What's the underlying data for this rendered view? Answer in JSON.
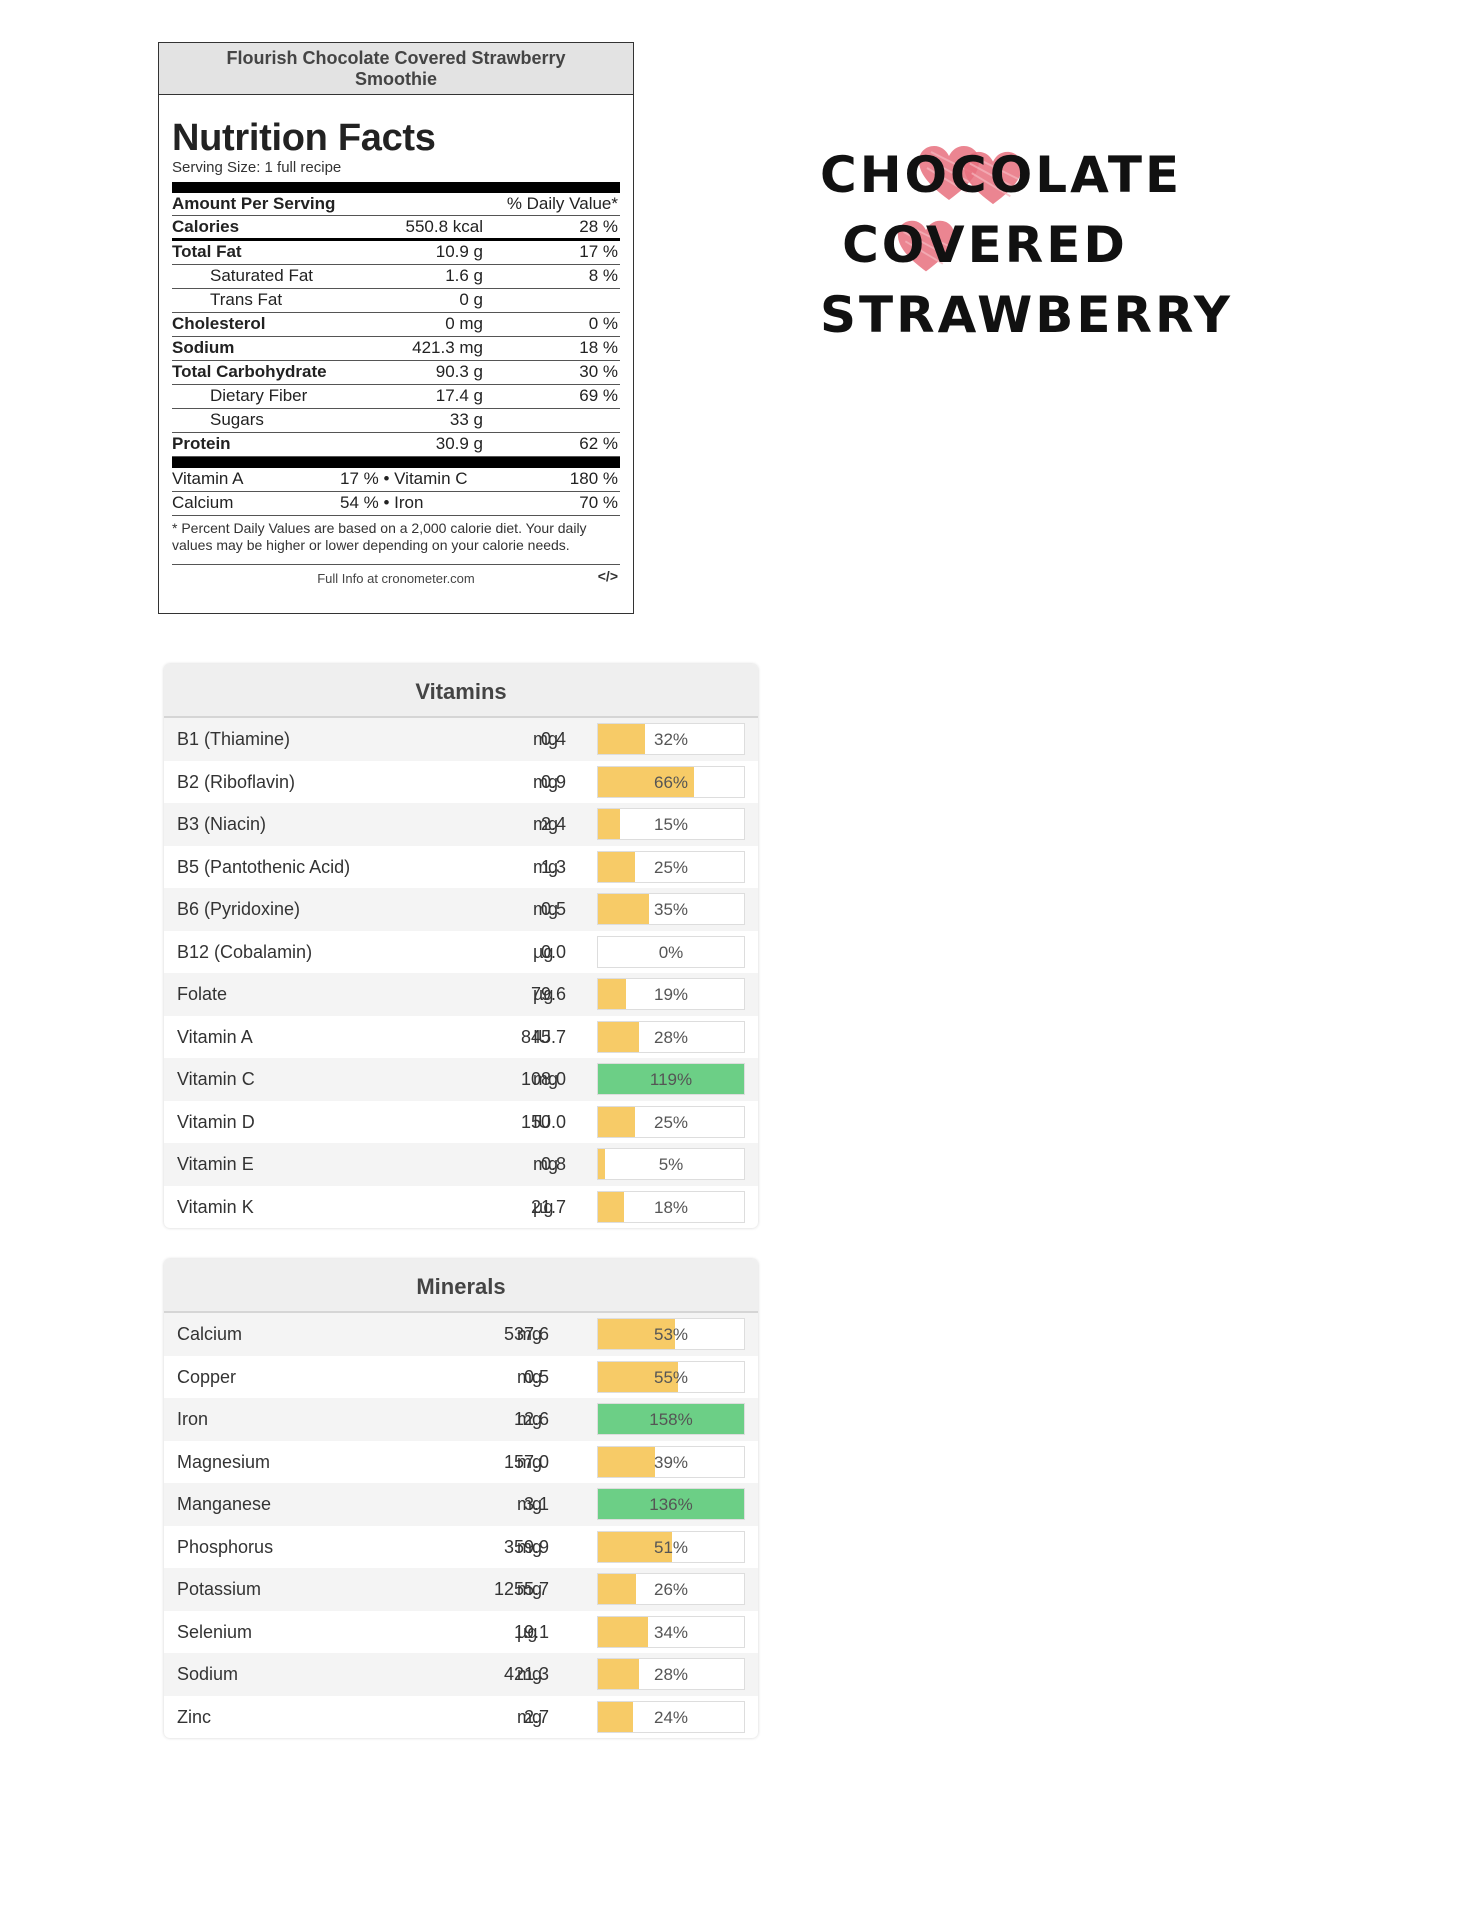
{
  "nutrition_label": {
    "recipe_title": "Flourish Chocolate Covered Strawberry Smoothie",
    "heading": "Nutrition Facts",
    "serving_size": "Serving Size: 1 full recipe",
    "amount_per_serving": "Amount Per Serving",
    "daily_value_header": "% Daily Value*",
    "calories": {
      "label": "Calories",
      "amount": "550.8 kcal",
      "dv": "28 %"
    },
    "rows": [
      {
        "label": "Total Fat",
        "amount": "10.9 g",
        "dv": "17 %",
        "style": "bold"
      },
      {
        "label": "Saturated Fat",
        "amount": "1.6 g",
        "dv": "8 %",
        "style": "sub"
      },
      {
        "label": "Trans Fat",
        "amount": "0 g",
        "dv": "",
        "style": "sub"
      },
      {
        "label": "Cholesterol",
        "amount": "0 mg",
        "dv": "0 %",
        "style": "bold"
      },
      {
        "label": "Sodium",
        "amount": "421.3 mg",
        "dv": "18 %",
        "style": "bold"
      },
      {
        "label": "Total Carbohydrate",
        "amount": "90.3 g",
        "dv": "30 %",
        "style": "bold"
      },
      {
        "label": "Dietary Fiber",
        "amount": "17.4 g",
        "dv": "69 %",
        "style": "sub"
      },
      {
        "label": "Sugars",
        "amount": "33 g",
        "dv": "",
        "style": "sub"
      },
      {
        "label": "Protein",
        "amount": "30.9 g",
        "dv": "62 %",
        "style": "bold"
      }
    ],
    "vitamin_rows": [
      {
        "left": "Vitamin A",
        "mid": "17 % • Vitamin C",
        "right": "180 %"
      },
      {
        "left": "Calcium",
        "mid": "54 % • Iron",
        "right": "70 %"
      }
    ],
    "footnote": "* Percent Daily Values are based on a 2,000 calorie diet. Your daily values may be higher or lower depending on your calorie needs.",
    "full_info": "Full Info at cronometer.com",
    "embed_icon": "</>"
  },
  "title_graphic": {
    "line1": "CHOCOLATE",
    "line2": "COVERED",
    "line3": "STRAWBERRY",
    "heart_color": "#e8707e"
  },
  "vitamins": {
    "title": "Vitamins",
    "items": [
      {
        "name": "B1 (Thiamine)",
        "value": "0.4",
        "unit": "mg",
        "pct_label": "32%",
        "pct": 32
      },
      {
        "name": "B2 (Riboflavin)",
        "value": "0.9",
        "unit": "mg",
        "pct_label": "66%",
        "pct": 66
      },
      {
        "name": "B3 (Niacin)",
        "value": "2.4",
        "unit": "mg",
        "pct_label": "15%",
        "pct": 15
      },
      {
        "name": "B5 (Pantothenic Acid)",
        "value": "1.3",
        "unit": "mg",
        "pct_label": "25%",
        "pct": 25
      },
      {
        "name": "B6 (Pyridoxine)",
        "value": "0.5",
        "unit": "mg",
        "pct_label": "35%",
        "pct": 35
      },
      {
        "name": "B12 (Cobalamin)",
        "value": "0.0",
        "unit": "µg",
        "pct_label": "0%",
        "pct": 0
      },
      {
        "name": "Folate",
        "value": "79.6",
        "unit": "µg",
        "pct_label": "19%",
        "pct": 19
      },
      {
        "name": "Vitamin A",
        "value": "845.7",
        "unit": "IU",
        "pct_label": "28%",
        "pct": 28
      },
      {
        "name": "Vitamin C",
        "value": "108.0",
        "unit": "mg",
        "pct_label": "119%",
        "pct": 119
      },
      {
        "name": "Vitamin D",
        "value": "150.0",
        "unit": "IU",
        "pct_label": "25%",
        "pct": 25
      },
      {
        "name": "Vitamin E",
        "value": "0.8",
        "unit": "mg",
        "pct_label": "5%",
        "pct": 5
      },
      {
        "name": "Vitamin K",
        "value": "21.7",
        "unit": "µg",
        "pct_label": "18%",
        "pct": 18
      }
    ]
  },
  "minerals": {
    "title": "Minerals",
    "items": [
      {
        "name": "Calcium",
        "value": "537.6",
        "unit": "mg",
        "pct_label": "53%",
        "pct": 53
      },
      {
        "name": "Copper",
        "value": "0.5",
        "unit": "mg",
        "pct_label": "55%",
        "pct": 55
      },
      {
        "name": "Iron",
        "value": "12.6",
        "unit": "mg",
        "pct_label": "158%",
        "pct": 158
      },
      {
        "name": "Magnesium",
        "value": "157.0",
        "unit": "mg",
        "pct_label": "39%",
        "pct": 39
      },
      {
        "name": "Manganese",
        "value": "3.1",
        "unit": "mg",
        "pct_label": "136%",
        "pct": 136
      },
      {
        "name": "Phosphorus",
        "value": "359.9",
        "unit": "mg",
        "pct_label": "51%",
        "pct": 51
      },
      {
        "name": "Potassium",
        "value": "1255.7",
        "unit": "mg",
        "pct_label": "26%",
        "pct": 26
      },
      {
        "name": "Selenium",
        "value": "19.1",
        "unit": "µg",
        "pct_label": "34%",
        "pct": 34
      },
      {
        "name": "Sodium",
        "value": "421.3",
        "unit": "mg",
        "pct_label": "28%",
        "pct": 28
      },
      {
        "name": "Zinc",
        "value": "2.7",
        "unit": "mg",
        "pct_label": "24%",
        "pct": 24
      }
    ]
  },
  "colors": {
    "bar_under_100": "#f7cb67",
    "bar_over_100": "#6ccf86"
  }
}
